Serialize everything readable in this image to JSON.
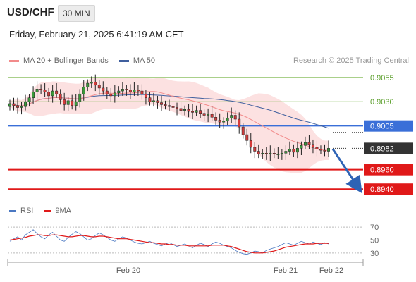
{
  "header": {
    "symbol": "USD/CHF",
    "timeframe": "30 MIN",
    "datetime": "Friday, February 21, 2025 6:41:19 AM CET",
    "copyright": "Research © 2025 Trading Central"
  },
  "legend": [
    {
      "label": "MA 20 + Bollinger Bands",
      "color": "#f28b8b"
    },
    {
      "label": "MA 50",
      "color": "#3f5f9e"
    }
  ],
  "rsi_legend": [
    {
      "label": "RSI",
      "color": "#4a78c2"
    },
    {
      "label": "9MA",
      "color": "#e01919"
    }
  ],
  "chart_data": [
    {
      "type": "candlestick",
      "title": "USD/CHF 30 MIN",
      "x_labels": [
        "Feb 20",
        "Feb 21",
        "Feb 22"
      ],
      "ylim": [
        0.893,
        0.9065
      ],
      "price_levels": [
        {
          "label": "0.9055",
          "value": 0.9055,
          "kind": "target",
          "color": "#8dc063"
        },
        {
          "label": "0.9030",
          "value": 0.903,
          "kind": "target",
          "color": "#8dc063"
        },
        {
          "label": "0.9005",
          "value": 0.9005,
          "kind": "pivot",
          "color": "#3a6fd8"
        },
        {
          "label": "0.8982",
          "value": 0.8982,
          "kind": "last",
          "color": "#333333"
        },
        {
          "label": "0.8960",
          "value": 0.896,
          "kind": "support",
          "color": "#e01919"
        },
        {
          "label": "0.8940",
          "value": 0.894,
          "kind": "support",
          "color": "#e01919"
        }
      ],
      "close_series": [
        0.9028,
        0.9026,
        0.9024,
        0.9025,
        0.903,
        0.9034,
        0.904,
        0.9043,
        0.9042,
        0.904,
        0.9036,
        0.9041,
        0.9038,
        0.9032,
        0.9027,
        0.9031,
        0.9026,
        0.903,
        0.9038,
        0.9045,
        0.9049,
        0.905,
        0.9047,
        0.9044,
        0.9041,
        0.9038,
        0.9036,
        0.9039,
        0.9041,
        0.9043,
        0.9042,
        0.904,
        0.9042,
        0.9041,
        0.9038,
        0.9034,
        0.903,
        0.9031,
        0.9029,
        0.9027,
        0.9026,
        0.9025,
        0.9024,
        0.9023,
        0.9021,
        0.9022,
        0.902,
        0.9019,
        0.9021,
        0.9018,
        0.9016,
        0.9017,
        0.9014,
        0.9011,
        0.9009,
        0.901,
        0.9013,
        0.9016,
        0.9012,
        0.9004,
        0.8996,
        0.899,
        0.8983,
        0.8979,
        0.8976,
        0.8977,
        0.8976,
        0.8977,
        0.8976,
        0.8976,
        0.8977,
        0.8979,
        0.8981,
        0.8978,
        0.8982,
        0.8985,
        0.8988,
        0.8986,
        0.8983,
        0.8981,
        0.898,
        0.8979,
        0.8982
      ]
    },
    {
      "type": "line",
      "title": "",
      "ylim": [
        20,
        80
      ],
      "y_ticks": [
        70,
        50,
        30
      ],
      "series": [
        {
          "name": "RSI",
          "color": "#4a78c2",
          "values": [
            48,
            52,
            55,
            50,
            58,
            62,
            66,
            60,
            55,
            52,
            58,
            62,
            56,
            50,
            48,
            54,
            59,
            63,
            60,
            55,
            50,
            52,
            57,
            61,
            58,
            54,
            50,
            48,
            52,
            55,
            53,
            50,
            47,
            45,
            44,
            46,
            48,
            45,
            43,
            41,
            44,
            46,
            43,
            40,
            42,
            44,
            41,
            38,
            42,
            45,
            43,
            40,
            44,
            47,
            45,
            42,
            40,
            38,
            34,
            31,
            29,
            28,
            30,
            33,
            32,
            30,
            34,
            36,
            38,
            40,
            43,
            46,
            44,
            42,
            45,
            48,
            46,
            44,
            47,
            45,
            43,
            46,
            44
          ]
        },
        {
          "name": "9MA",
          "color": "#e01919",
          "values": [
            50,
            51,
            52,
            53,
            54,
            56,
            57,
            58,
            58,
            57,
            57,
            58,
            58,
            57,
            56,
            55,
            55,
            56,
            57,
            57,
            56,
            55,
            55,
            56,
            56,
            55,
            54,
            53,
            52,
            52,
            52,
            51,
            50,
            49,
            48,
            47,
            46,
            46,
            45,
            44,
            44,
            43,
            43,
            42,
            42,
            42,
            41,
            41,
            41,
            41,
            41,
            41,
            42,
            42,
            42,
            42,
            41,
            40,
            38,
            36,
            34,
            32,
            31,
            30,
            30,
            30,
            31,
            32,
            33,
            35,
            37,
            39,
            40,
            41,
            42,
            43,
            44,
            44,
            44,
            45,
            45,
            45,
            45
          ]
        }
      ]
    }
  ]
}
